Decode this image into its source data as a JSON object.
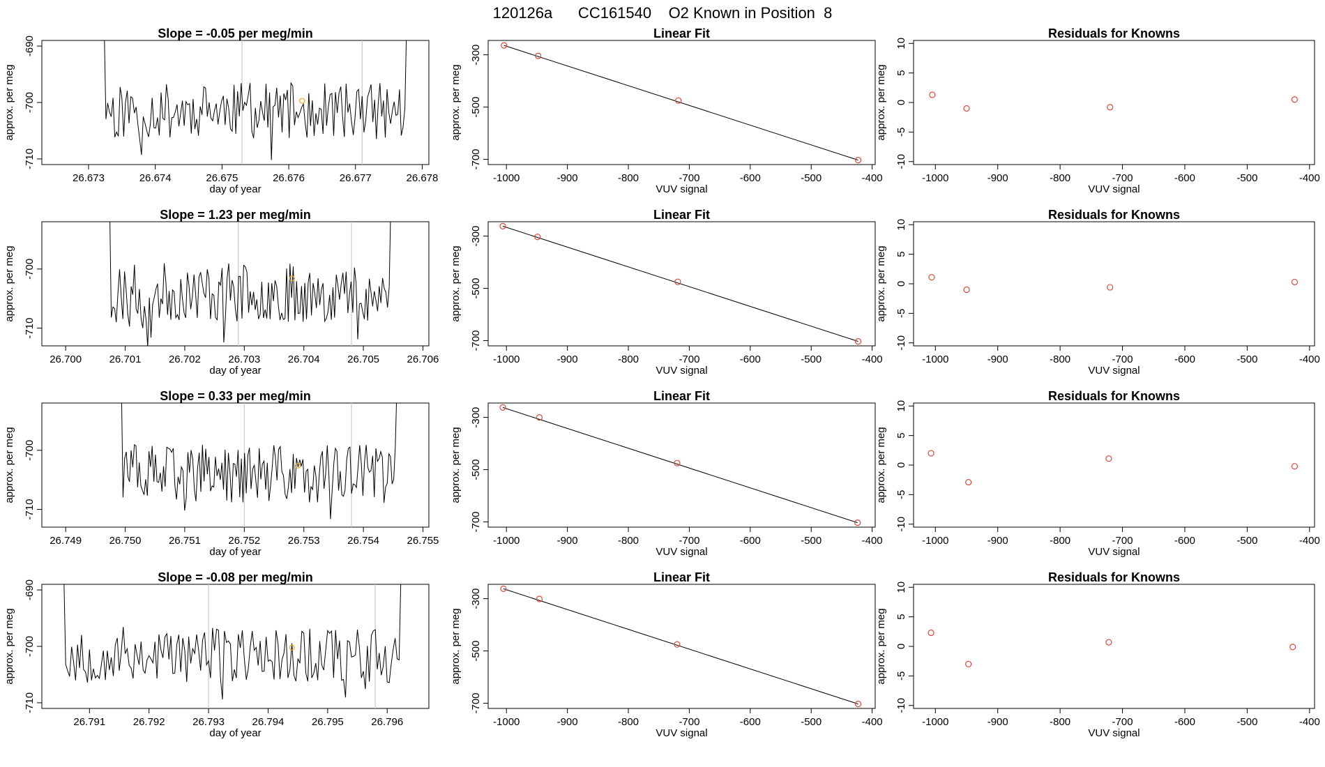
{
  "main_title": "120126a      CC161540    O2 Known in Position  8",
  "colors": {
    "trace": "#000000",
    "points": "#d94a3a",
    "mean_marker": "#f5a623",
    "guide_lines": "#c8c8c8"
  },
  "chart_data": [
    {
      "row": 0,
      "panel": "time-series",
      "type": "line",
      "title": "Slope =  -0.05  per meg/min",
      "xlabel": "day of year",
      "ylabel": "approx. per meg",
      "xlim": [
        26.6723,
        26.6781
      ],
      "ylim": [
        -711,
        -689
      ],
      "xticks": [
        26.673,
        26.674,
        26.675,
        26.676,
        26.677,
        26.678
      ],
      "xtick_labels": [
        "26.673",
        "26.674",
        "26.675",
        "26.676",
        "26.677",
        "26.678"
      ],
      "yticks": [
        -710,
        -700,
        -690
      ],
      "ytick_labels": [
        "-710",
        "-700",
        "-690"
      ],
      "vlines": [
        26.6753,
        26.6771
      ],
      "x_start": 26.6731,
      "x_end": 26.6779,
      "seed": 11,
      "mean_marker": {
        "x": 26.6762,
        "y": -699.7
      }
    },
    {
      "row": 0,
      "panel": "linear-fit",
      "type": "scatter",
      "title": "Linear Fit",
      "xlabel": "VUV signal",
      "ylabel": "approx. per meg",
      "xlim": [
        -1030,
        -395
      ],
      "ylim": [
        -720,
        -245
      ],
      "xticks": [
        -1000,
        -900,
        -800,
        -700,
        -600,
        -500,
        -400
      ],
      "xtick_labels": [
        "-1000",
        "-900",
        "-800",
        "-700",
        "-600",
        "-500",
        "-400"
      ],
      "yticks": [
        -700,
        -500,
        -300
      ],
      "ytick_labels": [
        "-700",
        "-500",
        "-300"
      ],
      "x": [
        -1004,
        -948,
        -718,
        -423
      ],
      "y": [
        -264,
        -304,
        -475,
        -703
      ],
      "fit": [
        [
          -1004,
          -264
        ],
        [
          -423,
          -703
        ]
      ]
    },
    {
      "row": 0,
      "panel": "residuals",
      "type": "scatter",
      "title": "Residuals for Knowns",
      "xlabel": "VUV signal",
      "ylabel": "approx. per meg",
      "xlim": [
        -1035,
        -392
      ],
      "ylim": [
        -10.5,
        10.5
      ],
      "xticks": [
        -1000,
        -900,
        -800,
        -700,
        -600,
        -500,
        -400
      ],
      "xtick_labels": [
        "-1000",
        "-900",
        "-800",
        "-700",
        "-600",
        "-500",
        "-400"
      ],
      "yticks": [
        -10,
        -5,
        0,
        5,
        10
      ],
      "ytick_labels": [
        "-10",
        "-5",
        "0",
        "5",
        "10"
      ],
      "x": [
        -1005,
        -950,
        -720,
        -424
      ],
      "y": [
        1.3,
        -1.0,
        -0.8,
        0.5
      ]
    },
    {
      "row": 1,
      "panel": "time-series",
      "type": "line",
      "title": "Slope =  1.23  per meg/min",
      "xlabel": "day of year",
      "ylabel": "approx. per meg",
      "xlim": [
        26.6996,
        26.7061
      ],
      "ylim": [
        -713,
        -692
      ],
      "xticks": [
        26.7,
        26.701,
        26.702,
        26.703,
        26.704,
        26.705,
        26.706
      ],
      "xtick_labels": [
        "26.700",
        "26.701",
        "26.702",
        "26.703",
        "26.704",
        "26.705",
        "26.706"
      ],
      "yticks": [
        -710,
        -700
      ],
      "ytick_labels": [
        "-710",
        "-700"
      ],
      "vlines": [
        26.7029,
        26.7048
      ],
      "x_start": 26.7006,
      "x_end": 26.7056,
      "seed": 23,
      "mean_marker": {
        "x": 26.7038,
        "y": -701.6
      }
    },
    {
      "row": 1,
      "panel": "linear-fit",
      "type": "scatter",
      "title": "Linear Fit",
      "xlabel": "VUV signal",
      "ylabel": "approx. per meg",
      "xlim": [
        -1030,
        -395
      ],
      "ylim": [
        -720,
        -245
      ],
      "xticks": [
        -1000,
        -900,
        -800,
        -700,
        -600,
        -500,
        -400
      ],
      "xtick_labels": [
        "-1000",
        "-900",
        "-800",
        "-700",
        "-600",
        "-500",
        "-400"
      ],
      "yticks": [
        -700,
        -500,
        -300
      ],
      "ytick_labels": [
        "-700",
        "-500",
        "-300"
      ],
      "x": [
        -1006,
        -949,
        -719,
        -423
      ],
      "y": [
        -262,
        -303,
        -475,
        -703
      ],
      "fit": [
        [
          -1006,
          -262
        ],
        [
          -423,
          -703
        ]
      ]
    },
    {
      "row": 1,
      "panel": "residuals",
      "type": "scatter",
      "title": "Residuals for Knowns",
      "xlabel": "VUV signal",
      "ylabel": "approx. per meg",
      "xlim": [
        -1035,
        -392
      ],
      "ylim": [
        -10.5,
        10.5
      ],
      "xticks": [
        -1000,
        -900,
        -800,
        -700,
        -600,
        -500,
        -400
      ],
      "xtick_labels": [
        "-1000",
        "-900",
        "-800",
        "-700",
        "-600",
        "-500",
        "-400"
      ],
      "yticks": [
        -10,
        -5,
        0,
        5,
        10
      ],
      "ytick_labels": [
        "-10",
        "-5",
        "0",
        "5",
        "10"
      ],
      "x": [
        -1006,
        -950,
        -720,
        -424
      ],
      "y": [
        1.1,
        -1.0,
        -0.6,
        0.3
      ]
    },
    {
      "row": 2,
      "panel": "time-series",
      "type": "line",
      "title": "Slope =  0.33  per meg/min",
      "xlabel": "day of year",
      "ylabel": "approx. per meg",
      "xlim": [
        26.7486,
        26.7551
      ],
      "ylim": [
        -713,
        -692
      ],
      "xticks": [
        26.749,
        26.75,
        26.751,
        26.752,
        26.753,
        26.754,
        26.755
      ],
      "xtick_labels": [
        "26.749",
        "26.750",
        "26.751",
        "26.752",
        "26.753",
        "26.754",
        "26.755"
      ],
      "yticks": [
        -710,
        -700
      ],
      "ytick_labels": [
        "-710",
        "-700"
      ],
      "vlines": [
        26.752,
        26.7538
      ],
      "x_start": 26.7498,
      "x_end": 26.7547,
      "seed": 37,
      "mean_marker": {
        "x": 26.7529,
        "y": -702.6
      }
    },
    {
      "row": 2,
      "panel": "linear-fit",
      "type": "scatter",
      "title": "Linear Fit",
      "xlabel": "VUV signal",
      "ylabel": "approx. per meg",
      "xlim": [
        -1030,
        -395
      ],
      "ylim": [
        -720,
        -245
      ],
      "xticks": [
        -1000,
        -900,
        -800,
        -700,
        -600,
        -500,
        -400
      ],
      "xtick_labels": [
        "-1000",
        "-900",
        "-800",
        "-700",
        "-600",
        "-500",
        "-400"
      ],
      "yticks": [
        -700,
        -500,
        -300
      ],
      "ytick_labels": [
        "-700",
        "-500",
        "-300"
      ],
      "x": [
        -1006,
        -946,
        -720,
        -424
      ],
      "y": [
        -262,
        -300,
        -475,
        -703
      ],
      "fit": [
        [
          -1006,
          -262
        ],
        [
          -424,
          -703
        ]
      ]
    },
    {
      "row": 2,
      "panel": "residuals",
      "type": "scatter",
      "title": "Residuals for Knowns",
      "xlabel": "VUV signal",
      "ylabel": "approx. per meg",
      "xlim": [
        -1035,
        -392
      ],
      "ylim": [
        -10.5,
        10.5
      ],
      "xticks": [
        -1000,
        -900,
        -800,
        -700,
        -600,
        -500,
        -400
      ],
      "xtick_labels": [
        "-1000",
        "-900",
        "-800",
        "-700",
        "-600",
        "-500",
        "-400"
      ],
      "yticks": [
        -10,
        -5,
        0,
        5,
        10
      ],
      "ytick_labels": [
        "-10",
        "-5",
        "0",
        "5",
        "10"
      ],
      "x": [
        -1007,
        -947,
        -722,
        -424
      ],
      "y": [
        2.0,
        -2.9,
        1.1,
        -0.2
      ]
    },
    {
      "row": 3,
      "panel": "time-series",
      "type": "line",
      "title": "Slope =  -0.08  per meg/min",
      "xlabel": "day of year",
      "ylabel": "approx. per meg",
      "xlim": [
        26.7902,
        26.7967
      ],
      "ylim": [
        -711,
        -689
      ],
      "xticks": [
        26.791,
        26.792,
        26.793,
        26.794,
        26.795,
        26.796
      ],
      "xtick_labels": [
        "26.791",
        "26.792",
        "26.793",
        "26.794",
        "26.795",
        "26.796"
      ],
      "yticks": [
        -710,
        -700,
        -690
      ],
      "ytick_labels": [
        "-710",
        "-700",
        "-690"
      ],
      "vlines": [
        26.793,
        26.7958
      ],
      "x_start": 26.7904,
      "x_end": 26.7964,
      "seed": 53,
      "mean_marker": {
        "x": 26.7944,
        "y": -700.2
      }
    },
    {
      "row": 3,
      "panel": "linear-fit",
      "type": "scatter",
      "title": "Linear Fit",
      "xlabel": "VUV signal",
      "ylabel": "approx. per meg",
      "xlim": [
        -1030,
        -395
      ],
      "ylim": [
        -720,
        -245
      ],
      "xticks": [
        -1000,
        -900,
        -800,
        -700,
        -600,
        -500,
        -400
      ],
      "xtick_labels": [
        "-1000",
        "-900",
        "-800",
        "-700",
        "-600",
        "-500",
        "-400"
      ],
      "yticks": [
        -700,
        -500,
        -300
      ],
      "ytick_labels": [
        "-700",
        "-500",
        "-300"
      ],
      "x": [
        -1005,
        -946,
        -720,
        -423
      ],
      "y": [
        -262,
        -301,
        -475,
        -703
      ],
      "fit": [
        [
          -1005,
          -262
        ],
        [
          -423,
          -703
        ]
      ]
    },
    {
      "row": 3,
      "panel": "residuals",
      "type": "scatter",
      "title": "Residuals for Knowns",
      "xlabel": "VUV signal",
      "ylabel": "approx. per meg",
      "xlim": [
        -1035,
        -392
      ],
      "ylim": [
        -10.5,
        10.5
      ],
      "xticks": [
        -1000,
        -900,
        -800,
        -700,
        -600,
        -500,
        -400
      ],
      "xtick_labels": [
        "-1000",
        "-900",
        "-800",
        "-700",
        "-600",
        "-500",
        "-400"
      ],
      "yticks": [
        -10,
        -5,
        0,
        5,
        10
      ],
      "ytick_labels": [
        "-10",
        "-5",
        "0",
        "5",
        "10"
      ],
      "x": [
        -1007,
        -947,
        -722,
        -427
      ],
      "y": [
        2.3,
        -3.0,
        0.7,
        -0.1
      ]
    }
  ]
}
